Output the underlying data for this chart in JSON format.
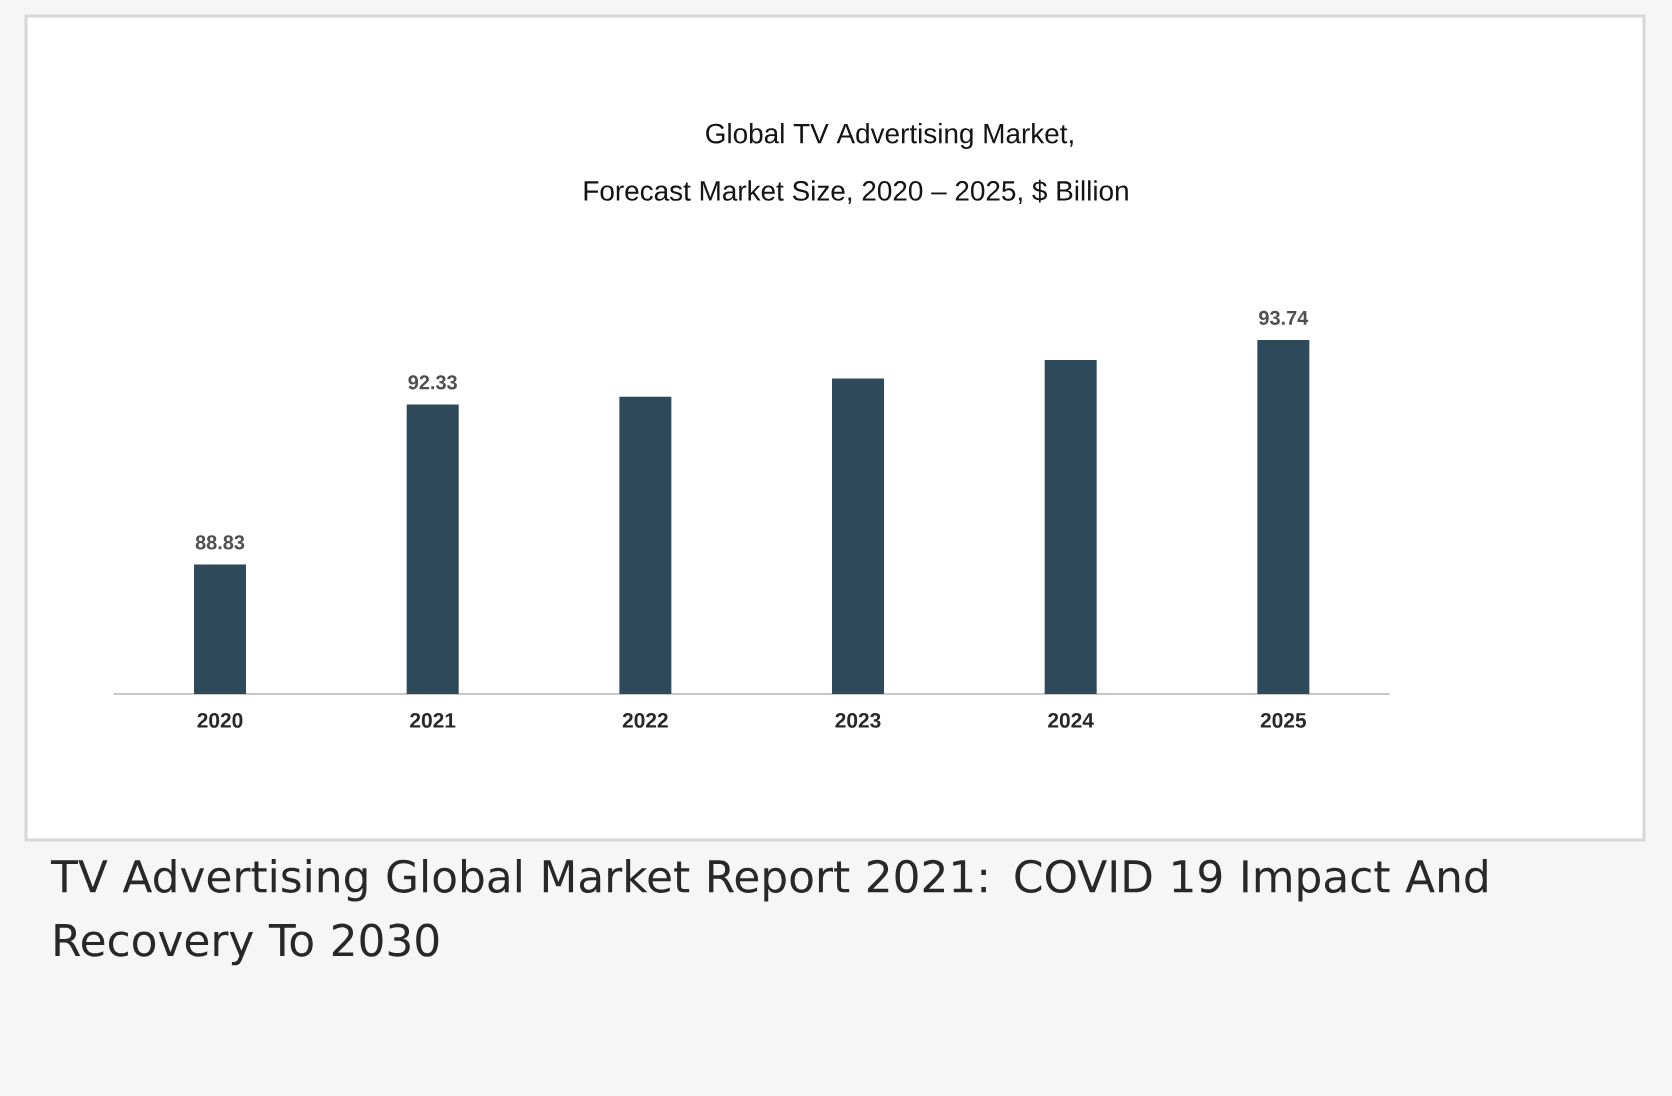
{
  "chart_data": {
    "type": "bar",
    "title": "Global TV Advertising Market,",
    "subtitle": "Forecast Market Size, 2020 – 2025, $ Billion",
    "categories": [
      "2020",
      "2021",
      "2022",
      "2023",
      "2024",
      "2025"
    ],
    "values": [
      88.83,
      92.33,
      92.5,
      92.9,
      93.3,
      93.74
    ],
    "value_labels": [
      "88.83",
      "92.33",
      null,
      null,
      null,
      "93.74"
    ],
    "color": "#2e4a5a",
    "ylim": [
      86,
      93.74
    ],
    "annotations": [
      "TV Advertising Global Market Report 2021: COVID 19 Impact And Recovery To 2030"
    ]
  }
}
